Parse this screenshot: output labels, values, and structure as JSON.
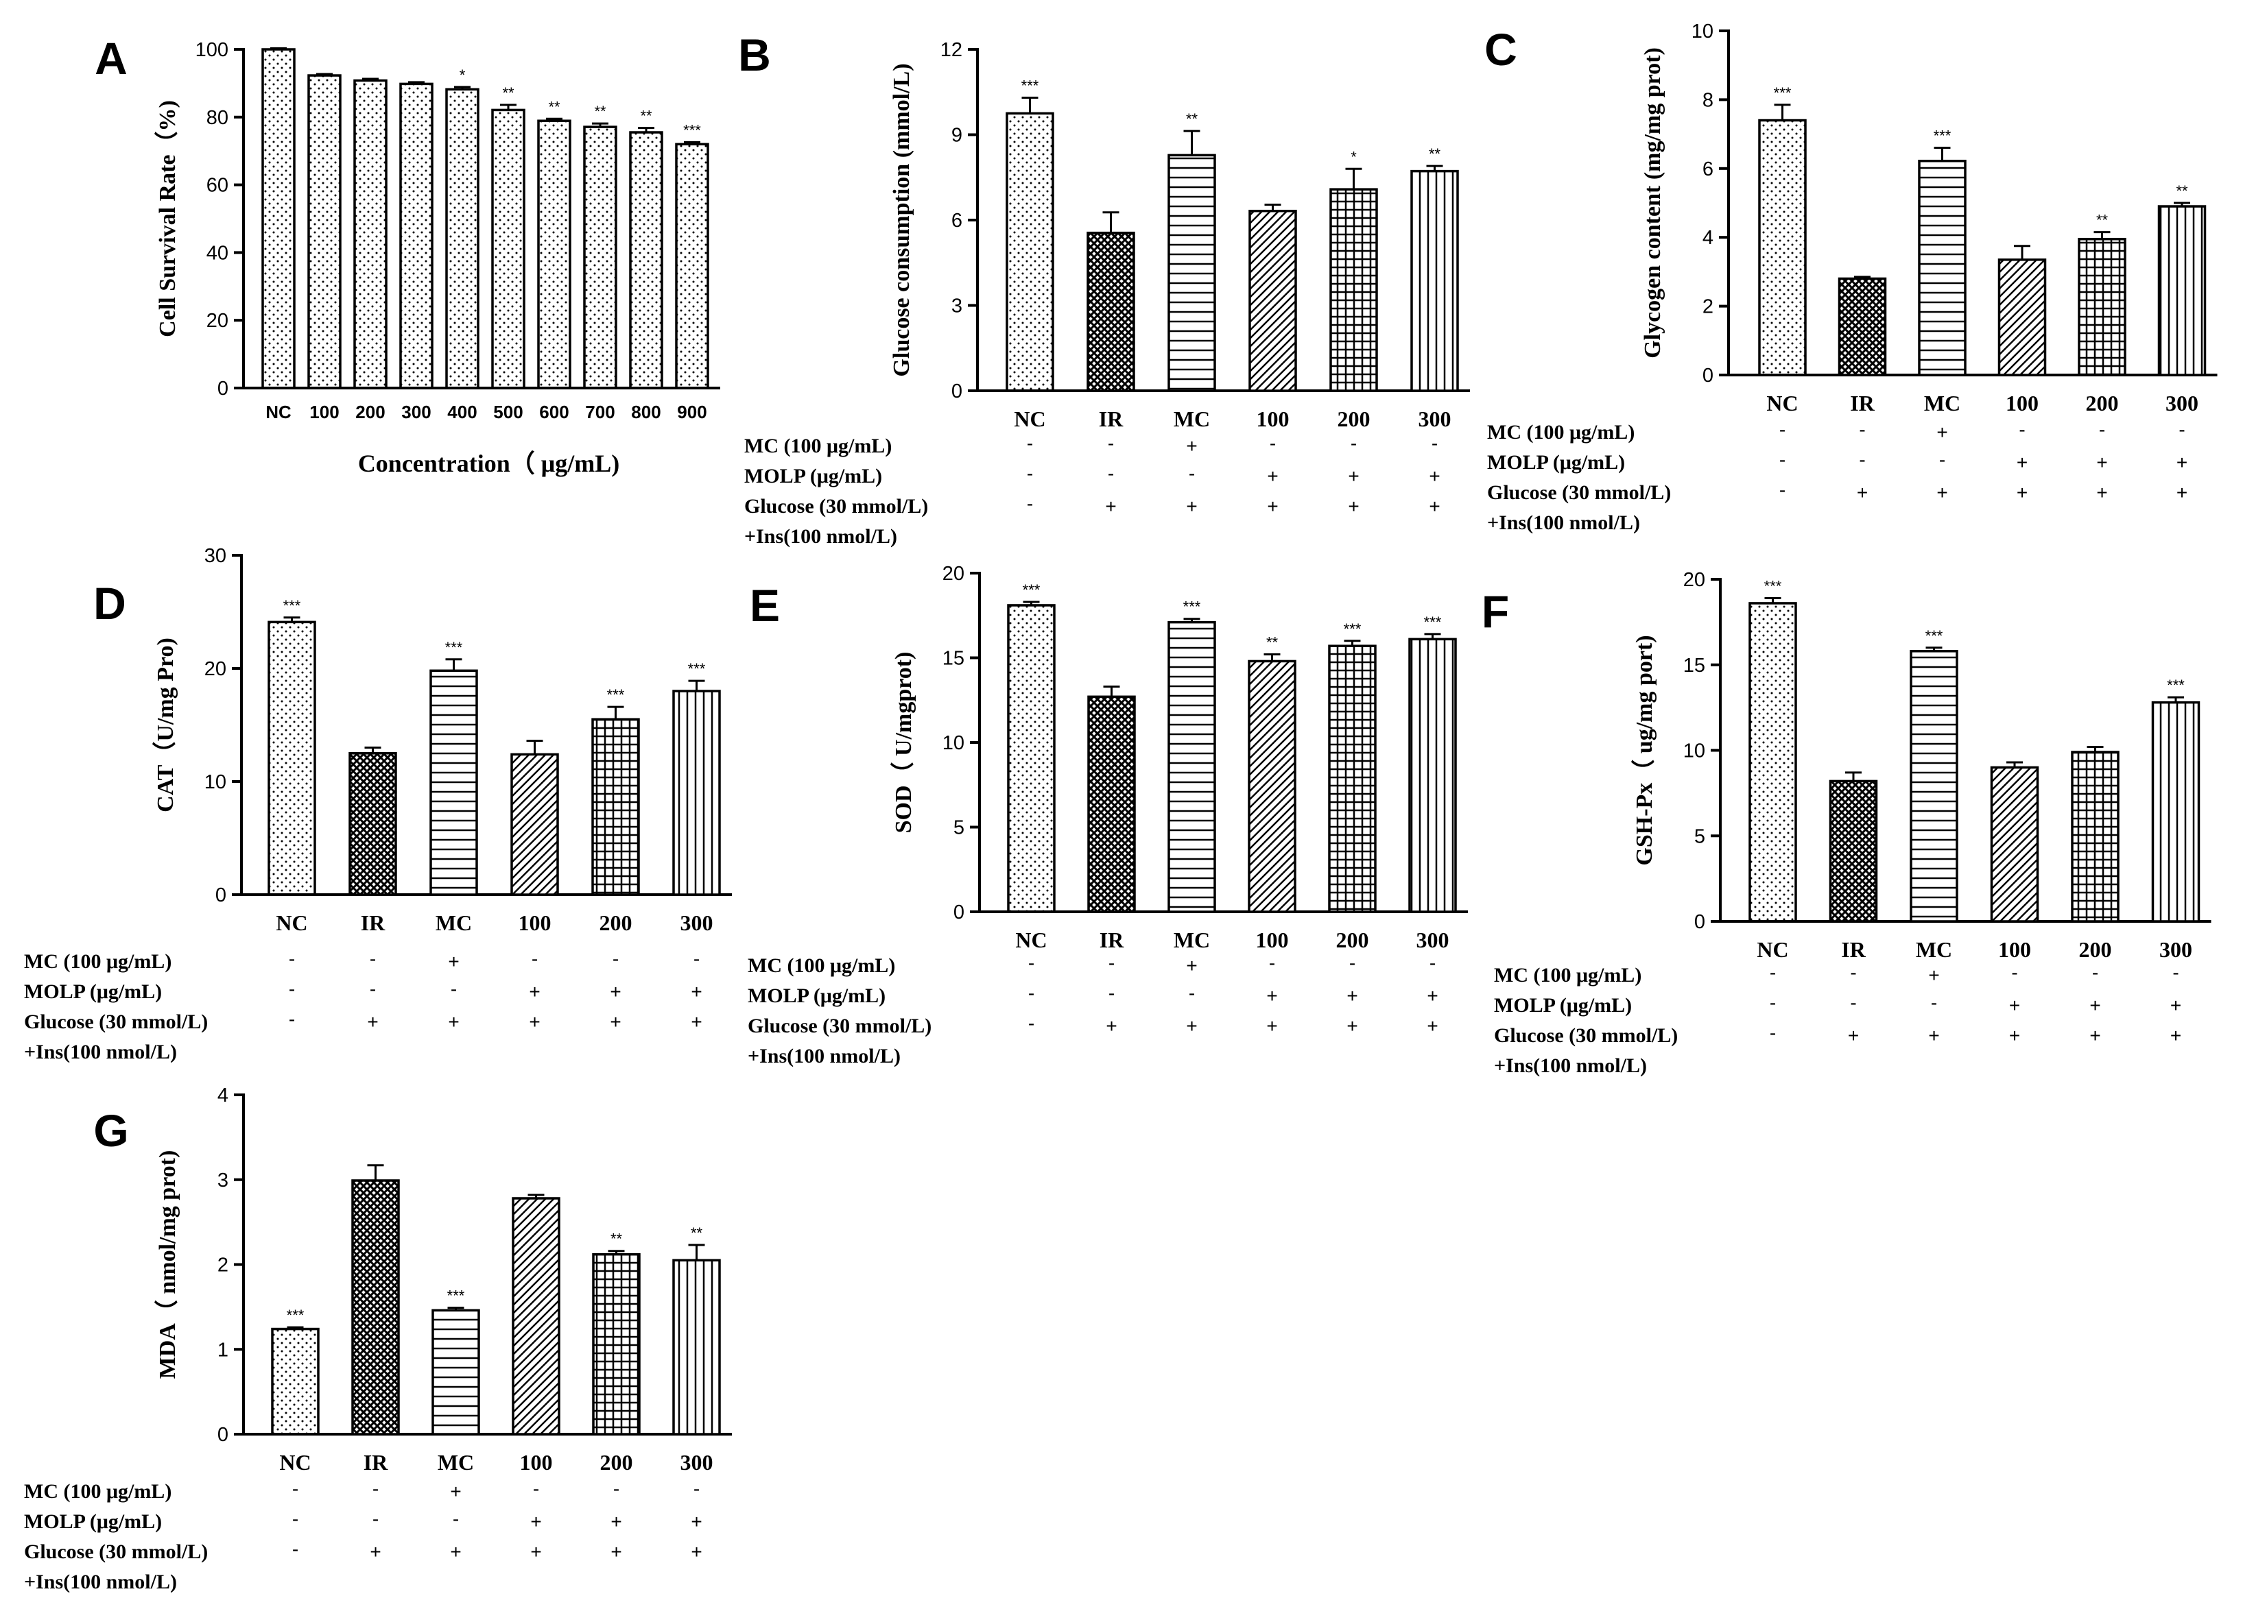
{
  "figure": {
    "treatment_rows": [
      "MC (100 μg/mL)",
      "MOLP (μg/mL)",
      "Glucose (30 mmol/L)",
      "+Ins(100 nmol/L)"
    ],
    "group_categories": [
      "NC",
      "IR",
      "MC",
      "100",
      "200",
      "300"
    ],
    "treatment_signs": [
      [
        "-",
        "-",
        "+",
        "-",
        "-",
        "-"
      ],
      [
        "-",
        "-",
        "-",
        "+",
        "+",
        "+"
      ],
      [
        "-",
        "+",
        "+",
        "+",
        "+",
        "+"
      ]
    ]
  },
  "chart_data": [
    {
      "panel": "A",
      "type": "bar",
      "categories": [
        "NC",
        "100",
        "200",
        "300",
        "400",
        "500",
        "600",
        "700",
        "800",
        "900"
      ],
      "values": [
        100,
        92.3,
        90.8,
        89.8,
        88.2,
        82.1,
        78.9,
        77.1,
        75.5,
        72.0
      ],
      "errors": [
        0.3,
        0.4,
        0.5,
        0.5,
        0.7,
        1.5,
        0.6,
        1.0,
        1.3,
        0.6
      ],
      "significance": [
        "",
        "",
        "",
        "",
        "*",
        "**",
        "**",
        "**",
        "**",
        "***"
      ],
      "patterns": [
        "dots",
        "dots",
        "dots",
        "dots",
        "dots",
        "dots",
        "dots",
        "dots",
        "dots",
        "dots"
      ],
      "ylabel": "Cell Survival Rate（%)",
      "xlabel": "Concentration（ μg/mL)",
      "ylim": [
        0,
        100
      ],
      "yticks": [
        0,
        20,
        40,
        60,
        80,
        100
      ],
      "grid": false
    },
    {
      "panel": "B",
      "type": "bar",
      "categories": [
        "NC",
        "IR",
        "MC",
        "100",
        "200",
        "300"
      ],
      "values": [
        9.75,
        5.55,
        8.28,
        6.32,
        7.08,
        7.72
      ],
      "errors": [
        0.55,
        0.72,
        0.85,
        0.22,
        0.72,
        0.18
      ],
      "significance": [
        "***",
        "",
        "**",
        "",
        "*",
        "**"
      ],
      "patterns": [
        "dots",
        "crosshatch",
        "hlines",
        "diag",
        "grid",
        "vlines"
      ],
      "ylabel": "Glucose consumption (mmol/L)",
      "ylim": [
        0,
        12
      ],
      "yticks": [
        0,
        3,
        6,
        9,
        12
      ],
      "grid": false
    },
    {
      "panel": "C",
      "type": "bar",
      "categories": [
        "NC",
        "IR",
        "MC",
        "100",
        "200",
        "300"
      ],
      "values": [
        7.4,
        2.8,
        6.22,
        3.35,
        3.95,
        4.9
      ],
      "errors": [
        0.45,
        0.05,
        0.38,
        0.4,
        0.2,
        0.1
      ],
      "significance": [
        "***",
        "",
        "***",
        "",
        "**",
        "**"
      ],
      "patterns": [
        "dots",
        "crosshatch",
        "hlines",
        "diag",
        "grid",
        "vlines"
      ],
      "ylabel": "Glycogen content (mg/mg prot)",
      "ylim": [
        0,
        10
      ],
      "yticks": [
        0,
        2,
        4,
        6,
        8,
        10
      ],
      "grid": false
    },
    {
      "panel": "D",
      "type": "bar",
      "categories": [
        "NC",
        "IR",
        "MC",
        "100",
        "200",
        "300"
      ],
      "values": [
        24.1,
        12.5,
        19.8,
        12.4,
        15.5,
        18.0
      ],
      "errors": [
        0.4,
        0.5,
        1.0,
        1.2,
        1.1,
        0.9
      ],
      "significance": [
        "***",
        "",
        "***",
        "",
        "***",
        "***"
      ],
      "patterns": [
        "dots",
        "crosshatch",
        "hlines",
        "diag",
        "grid",
        "vlines"
      ],
      "ylabel": "CAT（U/mg Pro)",
      "ylim": [
        0,
        30
      ],
      "yticks": [
        0,
        10,
        20,
        30
      ],
      "grid": false
    },
    {
      "panel": "E",
      "type": "bar",
      "categories": [
        "NC",
        "IR",
        "MC",
        "100",
        "200",
        "300"
      ],
      "values": [
        18.1,
        12.7,
        17.1,
        14.8,
        15.7,
        16.1
      ],
      "errors": [
        0.2,
        0.6,
        0.2,
        0.4,
        0.3,
        0.3
      ],
      "significance": [
        "***",
        "",
        "***",
        "**",
        "***",
        "***"
      ],
      "patterns": [
        "dots",
        "crosshatch",
        "hlines",
        "diag",
        "grid",
        "vlines"
      ],
      "ylabel": "SOD（ U/mgprot)",
      "ylim": [
        0,
        20
      ],
      "yticks": [
        0,
        5,
        10,
        15,
        20
      ],
      "grid": false
    },
    {
      "panel": "F",
      "type": "bar",
      "categories": [
        "NC",
        "IR",
        "MC",
        "100",
        "200",
        "300"
      ],
      "values": [
        18.6,
        8.2,
        15.8,
        9.0,
        9.9,
        12.8
      ],
      "errors": [
        0.3,
        0.5,
        0.2,
        0.3,
        0.3,
        0.3
      ],
      "significance": [
        "***",
        "",
        "***",
        "",
        "",
        "***"
      ],
      "patterns": [
        "dots",
        "crosshatch",
        "hlines",
        "diag",
        "grid",
        "vlines"
      ],
      "ylabel": "GSH-Px（ ug/mg port)",
      "ylim": [
        0,
        20
      ],
      "yticks": [
        0,
        5,
        10,
        15,
        20
      ],
      "grid": false
    },
    {
      "panel": "G",
      "type": "bar",
      "categories": [
        "NC",
        "IR",
        "MC",
        "100",
        "200",
        "300"
      ],
      "values": [
        1.24,
        2.99,
        1.46,
        2.78,
        2.12,
        2.05
      ],
      "errors": [
        0.02,
        0.18,
        0.03,
        0.04,
        0.04,
        0.18
      ],
      "significance": [
        "***",
        "",
        "***",
        "",
        "**",
        "**"
      ],
      "patterns": [
        "dots",
        "crosshatch",
        "hlines",
        "diag",
        "grid",
        "vlines"
      ],
      "ylabel": "MDA（ nmol/mg prot)",
      "ylim": [
        0,
        4
      ],
      "yticks": [
        0,
        1,
        2,
        3,
        4
      ],
      "grid": false
    }
  ]
}
